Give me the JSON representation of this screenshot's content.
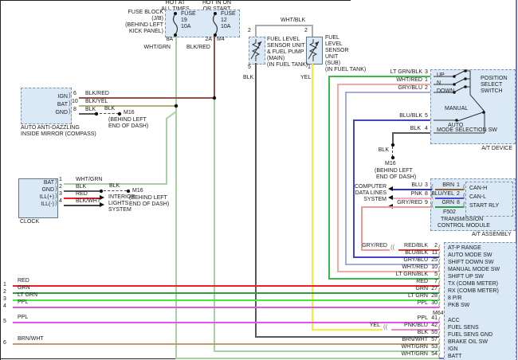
{
  "wire_colors": {
    "BLK/RED": "#93514a",
    "BLK/YEL": "#b7ae7c",
    "BLK": "#57585a",
    "WHT/GRN": "#a6d2a2",
    "WHT/BLK": "#a9abad",
    "YEL": "#f3ee33",
    "LT GRN/BLK": "#3bbb4a",
    "WHT/RED": "#f4aaa4",
    "GRY/BLU": "#a9aade",
    "BLU/BLK": "#4543cb",
    "BLU": "#2e2ed6",
    "PNK": "#f6a9c4",
    "GRY/RED": "#ec9b95",
    "RED/BLK": "#e23b2e",
    "RED": "#ee1c25",
    "GRN": "#2f9e41",
    "LT GRN": "#44e93c",
    "PPL": "#e651e6",
    "PNK/BLU": "#ef86c5",
    "BRN/WHT": "#b99d69",
    "BRN": "#8f5f31",
    "BLU/YEL": "#4a49d2",
    "BLK/WHT": "#414143"
  },
  "fuse_block": {
    "hot1a": "HOT AT",
    "hot1b": "ALL TIMES",
    "hot2a": "HOT IN ON",
    "hot2b": "OR START",
    "title1": "FUSE BLOCK",
    "title2": "(J/B)",
    "title3": "(BEHIND LEFT",
    "title4": "KICK PANEL)",
    "fuse1a": "FUSE",
    "fuse1b": "19",
    "fuse1c": "10A",
    "fuse2a": "FUSE",
    "fuse2b": "12",
    "fuse2c": "10A",
    "pin_left": "8A",
    "pin_right": "2A",
    "conn": "M4",
    "wire_left": "WHT/GRN",
    "wire_right": "BLK/RED"
  },
  "fuel_main": {
    "l1": "FUEL LEVEL",
    "l2": "SENSOR UNIT",
    "l3": "& FUEL PUMP",
    "l4": "(MAIN)",
    "l5": "(IN FUEL TANK)",
    "pin_top": "2",
    "pin_bot": "5",
    "wire_top": "WHT/BLK",
    "wire_bot": "BLK"
  },
  "fuel_sub": {
    "l1": "FUEL",
    "l2": "LEVEL",
    "l3": "SENSOR",
    "l4": "UNIT",
    "l5": "(SUB)",
    "l6": "(IN FUEL TANK)",
    "pin_top": "2",
    "pin_bot": "1",
    "wire_bot": "YEL"
  },
  "mirror": {
    "pin1": "IGN",
    "pin1n": "6",
    "w1": "BLK/RED",
    "pin2": "BAT",
    "pin2n": "10",
    "w2": "BLK/YEL",
    "pin3": "GND",
    "pin3n": "8",
    "w3": "BLK",
    "splice": "BLK",
    "m16": "M16",
    "loc1": "(BEHIND LEFT",
    "loc2": "END OF DASH)",
    "cap1": "AUTO ANTI-DAZZLING",
    "cap2": "INSIDE MIRROR (COMPASS)"
  },
  "clock": {
    "pin1": "BAT",
    "pin1n": "1",
    "w1": "WHT/GRN",
    "pin2": "GND",
    "pin2n": "2",
    "w2": "BLK",
    "pin3": "ILL(+)",
    "pin3n": "3",
    "w3": "RED",
    "pin4": "ILL(-)",
    "pin4n": "4",
    "w4": "BLK/WHT",
    "splice": "BLK",
    "m16": "M16",
    "loc1": "(BEHIND LEFT",
    "loc2": "END OF DASH)",
    "int1": "INTERIOR",
    "int2": "LIGHTS",
    "int3": "SYSTEM",
    "cap": "CLOCK"
  },
  "at_device": {
    "r1w": "LT GRN/BLK",
    "r1n": "3",
    "r1l": "UP",
    "r2w": "WHT/RED",
    "r2n": "1",
    "r2l": "N",
    "r3w": "GRY/BLU",
    "r3n": "2",
    "r3l": "DOWN",
    "sw1a": "POSITION",
    "sw1b": "SELECT",
    "sw1c": "SWITCH",
    "manual": "MANUAL",
    "auto": "AUTO",
    "r4w": "BLU/BLK",
    "r4n": "5",
    "r5w": "BLK",
    "r5n": "4",
    "r5l": "MODE SELECTION SW",
    "cap": "A/T DEVICE",
    "splice": "BLK",
    "m16": "M16",
    "loc1": "(BEHIND LEFT",
    "loc2": "END OF DASH)"
  },
  "tcm": {
    "sys1": "COMPUTER",
    "sys2": "DATA LINES",
    "sys3": "SYSTEM",
    "r1w": "BLU",
    "r1n": "3",
    "r1iw": "BRN",
    "r1in": "1",
    "r1l": "CAN-H",
    "r2w": "PNK",
    "r2n": "8",
    "r2iw": "BLU/YEL",
    "r2in": "2",
    "r2l": "CAN-L",
    "r3w": "GRY/RED",
    "r3n": "9",
    "r3iw": "GRN",
    "r3in": "8",
    "r3l": "START RLY",
    "f502": "F502",
    "cap1": "TRANSMISSION",
    "cap2": "CONTROL MODULE",
    "cap3": "A/T ASSEMBLY"
  },
  "m64": {
    "connector": "M64",
    "rows": [
      {
        "wire": "RED/BLK",
        "pin": "2",
        "label": "AT-P RANGE",
        "from": 453,
        "conn": 492,
        "pre": "GRY/RED"
      },
      {
        "wire": "BLU/BLK",
        "pin": "11",
        "label": "AUTO MODE SW",
        "from": 443
      },
      {
        "wire": "GRY/BLU",
        "pin": "25",
        "label": "SHIFT DOWN SW",
        "from": 433
      },
      {
        "wire": "WHT/RED",
        "pin": "10",
        "label": "MANUAL MODE SW",
        "from": 423
      },
      {
        "wire": "LT GRN/BLK",
        "pin": "5",
        "label": "SHIFT UP SW",
        "from": 412
      },
      {
        "wire": "RED",
        "pin": "7",
        "label": "TX (COMB METER)",
        "from": 16
      },
      {
        "wire": "GRN",
        "pin": "27",
        "label": "RX (COMB METER)",
        "from": 16
      },
      {
        "wire": "LT GRN",
        "pin": "28",
        "label": "8 P/R",
        "from": 16
      },
      {
        "wire": "PPL",
        "pin": "30",
        "label": "PKB SW",
        "from": 16
      },
      {
        "wire": "PPL",
        "pin": "41",
        "label": "ACC",
        "from": 16
      },
      {
        "wire": "PNK/BLU",
        "pin": "42",
        "label": "FUEL SENS",
        "from": 391,
        "conn": 483,
        "pre": "YEL"
      },
      {
        "wire": "BLK",
        "pin": "55",
        "label": "FUEL SENS GND",
        "from": 320
      },
      {
        "wire": "BRN/WHT",
        "pin": "57",
        "label": "BRAKE OIL SW",
        "from": 16
      },
      {
        "wire": "WHT/GRN",
        "pin": "53",
        "label": "IGN",
        "from": 268
      },
      {
        "wire": "WHT/GRN",
        "pin": "54",
        "label": "BATT",
        "from": 220
      }
    ]
  },
  "left_wires": [
    {
      "num": "1",
      "label": "RED"
    },
    {
      "num": "2",
      "label": "GRN"
    },
    {
      "num": "3",
      "label": "LT GRN"
    },
    {
      "num": "4",
      "label": "PPL"
    },
    {
      "num": "5",
      "label": "PPL"
    },
    {
      "num": "6",
      "label": "BRN/WHT"
    }
  ]
}
